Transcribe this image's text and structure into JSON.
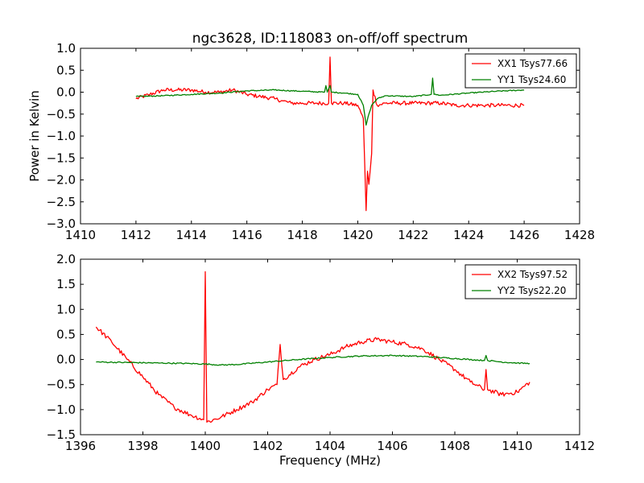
{
  "chart_data": {
    "type": "line",
    "title": "ngc3628, ID:118083 on-off/off spectrum",
    "ylabel": "Power in Kelvin",
    "xlabel": "Frequency (MHz)",
    "colors": {
      "red": "#ff0000",
      "green": "#008000"
    },
    "panels": [
      {
        "xlim": [
          1410,
          1428
        ],
        "ylim": [
          -3.0,
          1.0
        ],
        "xticks": [
          "1410",
          "1412",
          "1414",
          "1416",
          "1418",
          "1420",
          "1422",
          "1424",
          "1426",
          "1428"
        ],
        "yticks": [
          "1.0",
          "0.5",
          "0.0",
          "−0.5",
          "−1.0",
          "−1.5",
          "−2.0",
          "−2.5",
          "−3.0"
        ],
        "legend_position": "top-right",
        "series": [
          {
            "name": "XX1 Tsys77.66",
            "color": "#ff0000",
            "x": [
              1412.0,
              1412.5,
              1413.0,
              1413.5,
              1414.0,
              1414.5,
              1415.0,
              1415.5,
              1416.0,
              1416.5,
              1417.0,
              1417.3,
              1417.6,
              1418.0,
              1418.5,
              1418.95,
              1419.0,
              1419.05,
              1419.5,
              1420.0,
              1420.2,
              1420.3,
              1420.35,
              1420.4,
              1420.5,
              1420.55,
              1420.7,
              1421.0,
              1421.5,
              1422.0,
              1422.5,
              1423.0,
              1423.5,
              1424.0,
              1424.5,
              1425.0,
              1425.5,
              1426.0
            ],
            "y": [
              -0.15,
              -0.05,
              0.05,
              0.05,
              0.05,
              0.0,
              0.0,
              0.05,
              -0.05,
              -0.1,
              -0.15,
              -0.2,
              -0.25,
              -0.25,
              -0.25,
              -0.25,
              0.8,
              -0.25,
              -0.25,
              -0.3,
              -0.6,
              -2.7,
              -1.8,
              -2.1,
              -1.4,
              0.05,
              -0.3,
              -0.25,
              -0.25,
              -0.25,
              -0.25,
              -0.25,
              -0.3,
              -0.3,
              -0.3,
              -0.3,
              -0.3,
              -0.3
            ]
          },
          {
            "name": "YY1 Tsys24.60",
            "color": "#008000",
            "x": [
              1412.0,
              1413.0,
              1414.0,
              1415.0,
              1416.0,
              1417.0,
              1418.0,
              1418.8,
              1418.85,
              1418.9,
              1419.0,
              1419.05,
              1419.1,
              1419.5,
              1420.0,
              1420.2,
              1420.3,
              1420.4,
              1420.5,
              1420.7,
              1421.0,
              1422.0,
              1422.65,
              1422.7,
              1422.75,
              1423.0,
              1424.0,
              1425.0,
              1426.0
            ],
            "y": [
              -0.1,
              -0.08,
              -0.05,
              -0.02,
              0.03,
              0.05,
              0.02,
              0.0,
              0.15,
              0.0,
              0.15,
              0.0,
              0.0,
              -0.02,
              -0.05,
              -0.3,
              -0.75,
              -0.5,
              -0.3,
              -0.15,
              -0.08,
              -0.1,
              -0.05,
              0.32,
              -0.05,
              -0.07,
              -0.02,
              0.02,
              0.05
            ]
          }
        ]
      },
      {
        "xlim": [
          1396,
          1412
        ],
        "ylim": [
          -1.5,
          2.0
        ],
        "xticks": [
          "1396",
          "1398",
          "1400",
          "1402",
          "1404",
          "1406",
          "1408",
          "1410",
          "1412"
        ],
        "yticks": [
          "2.0",
          "1.5",
          "1.0",
          "0.5",
          "0.0",
          "−0.5",
          "−1.0",
          "−1.5"
        ],
        "legend_position": "top-right",
        "series": [
          {
            "name": "XX2 Tsys97.52",
            "color": "#ff0000",
            "x": [
              1396.5,
              1397.0,
              1397.5,
              1398.0,
              1398.5,
              1399.0,
              1399.5,
              1399.95,
              1400.0,
              1400.05,
              1400.5,
              1401.0,
              1401.5,
              1402.0,
              1402.3,
              1402.4,
              1402.5,
              1403.0,
              1403.5,
              1404.0,
              1404.5,
              1405.0,
              1405.5,
              1406.0,
              1406.5,
              1407.0,
              1407.5,
              1408.0,
              1408.5,
              1408.95,
              1409.0,
              1409.05,
              1409.5,
              1410.0,
              1410.4
            ],
            "y": [
              0.65,
              0.35,
              0.0,
              -0.35,
              -0.7,
              -0.95,
              -1.1,
              -1.2,
              1.75,
              -1.25,
              -1.15,
              -1.0,
              -0.85,
              -0.6,
              -0.5,
              0.3,
              -0.4,
              -0.15,
              0.0,
              0.1,
              0.25,
              0.35,
              0.4,
              0.35,
              0.3,
              0.2,
              0.0,
              -0.2,
              -0.45,
              -0.6,
              -0.2,
              -0.6,
              -0.7,
              -0.65,
              -0.45
            ]
          },
          {
            "name": "YY2 Tsys22.20",
            "color": "#008000",
            "x": [
              1396.5,
              1397.5,
              1398.5,
              1399.5,
              1400.0,
              1400.5,
              1401.0,
              1402.0,
              1403.0,
              1404.0,
              1405.0,
              1406.0,
              1407.0,
              1408.0,
              1408.95,
              1409.0,
              1409.05,
              1409.5,
              1410.0,
              1410.4
            ],
            "y": [
              -0.05,
              -0.06,
              -0.07,
              -0.08,
              -0.09,
              -0.11,
              -0.1,
              -0.05,
              0.0,
              0.04,
              0.07,
              0.08,
              0.06,
              0.02,
              -0.02,
              0.08,
              -0.02,
              -0.05,
              -0.07,
              -0.08
            ]
          }
        ]
      }
    ]
  }
}
